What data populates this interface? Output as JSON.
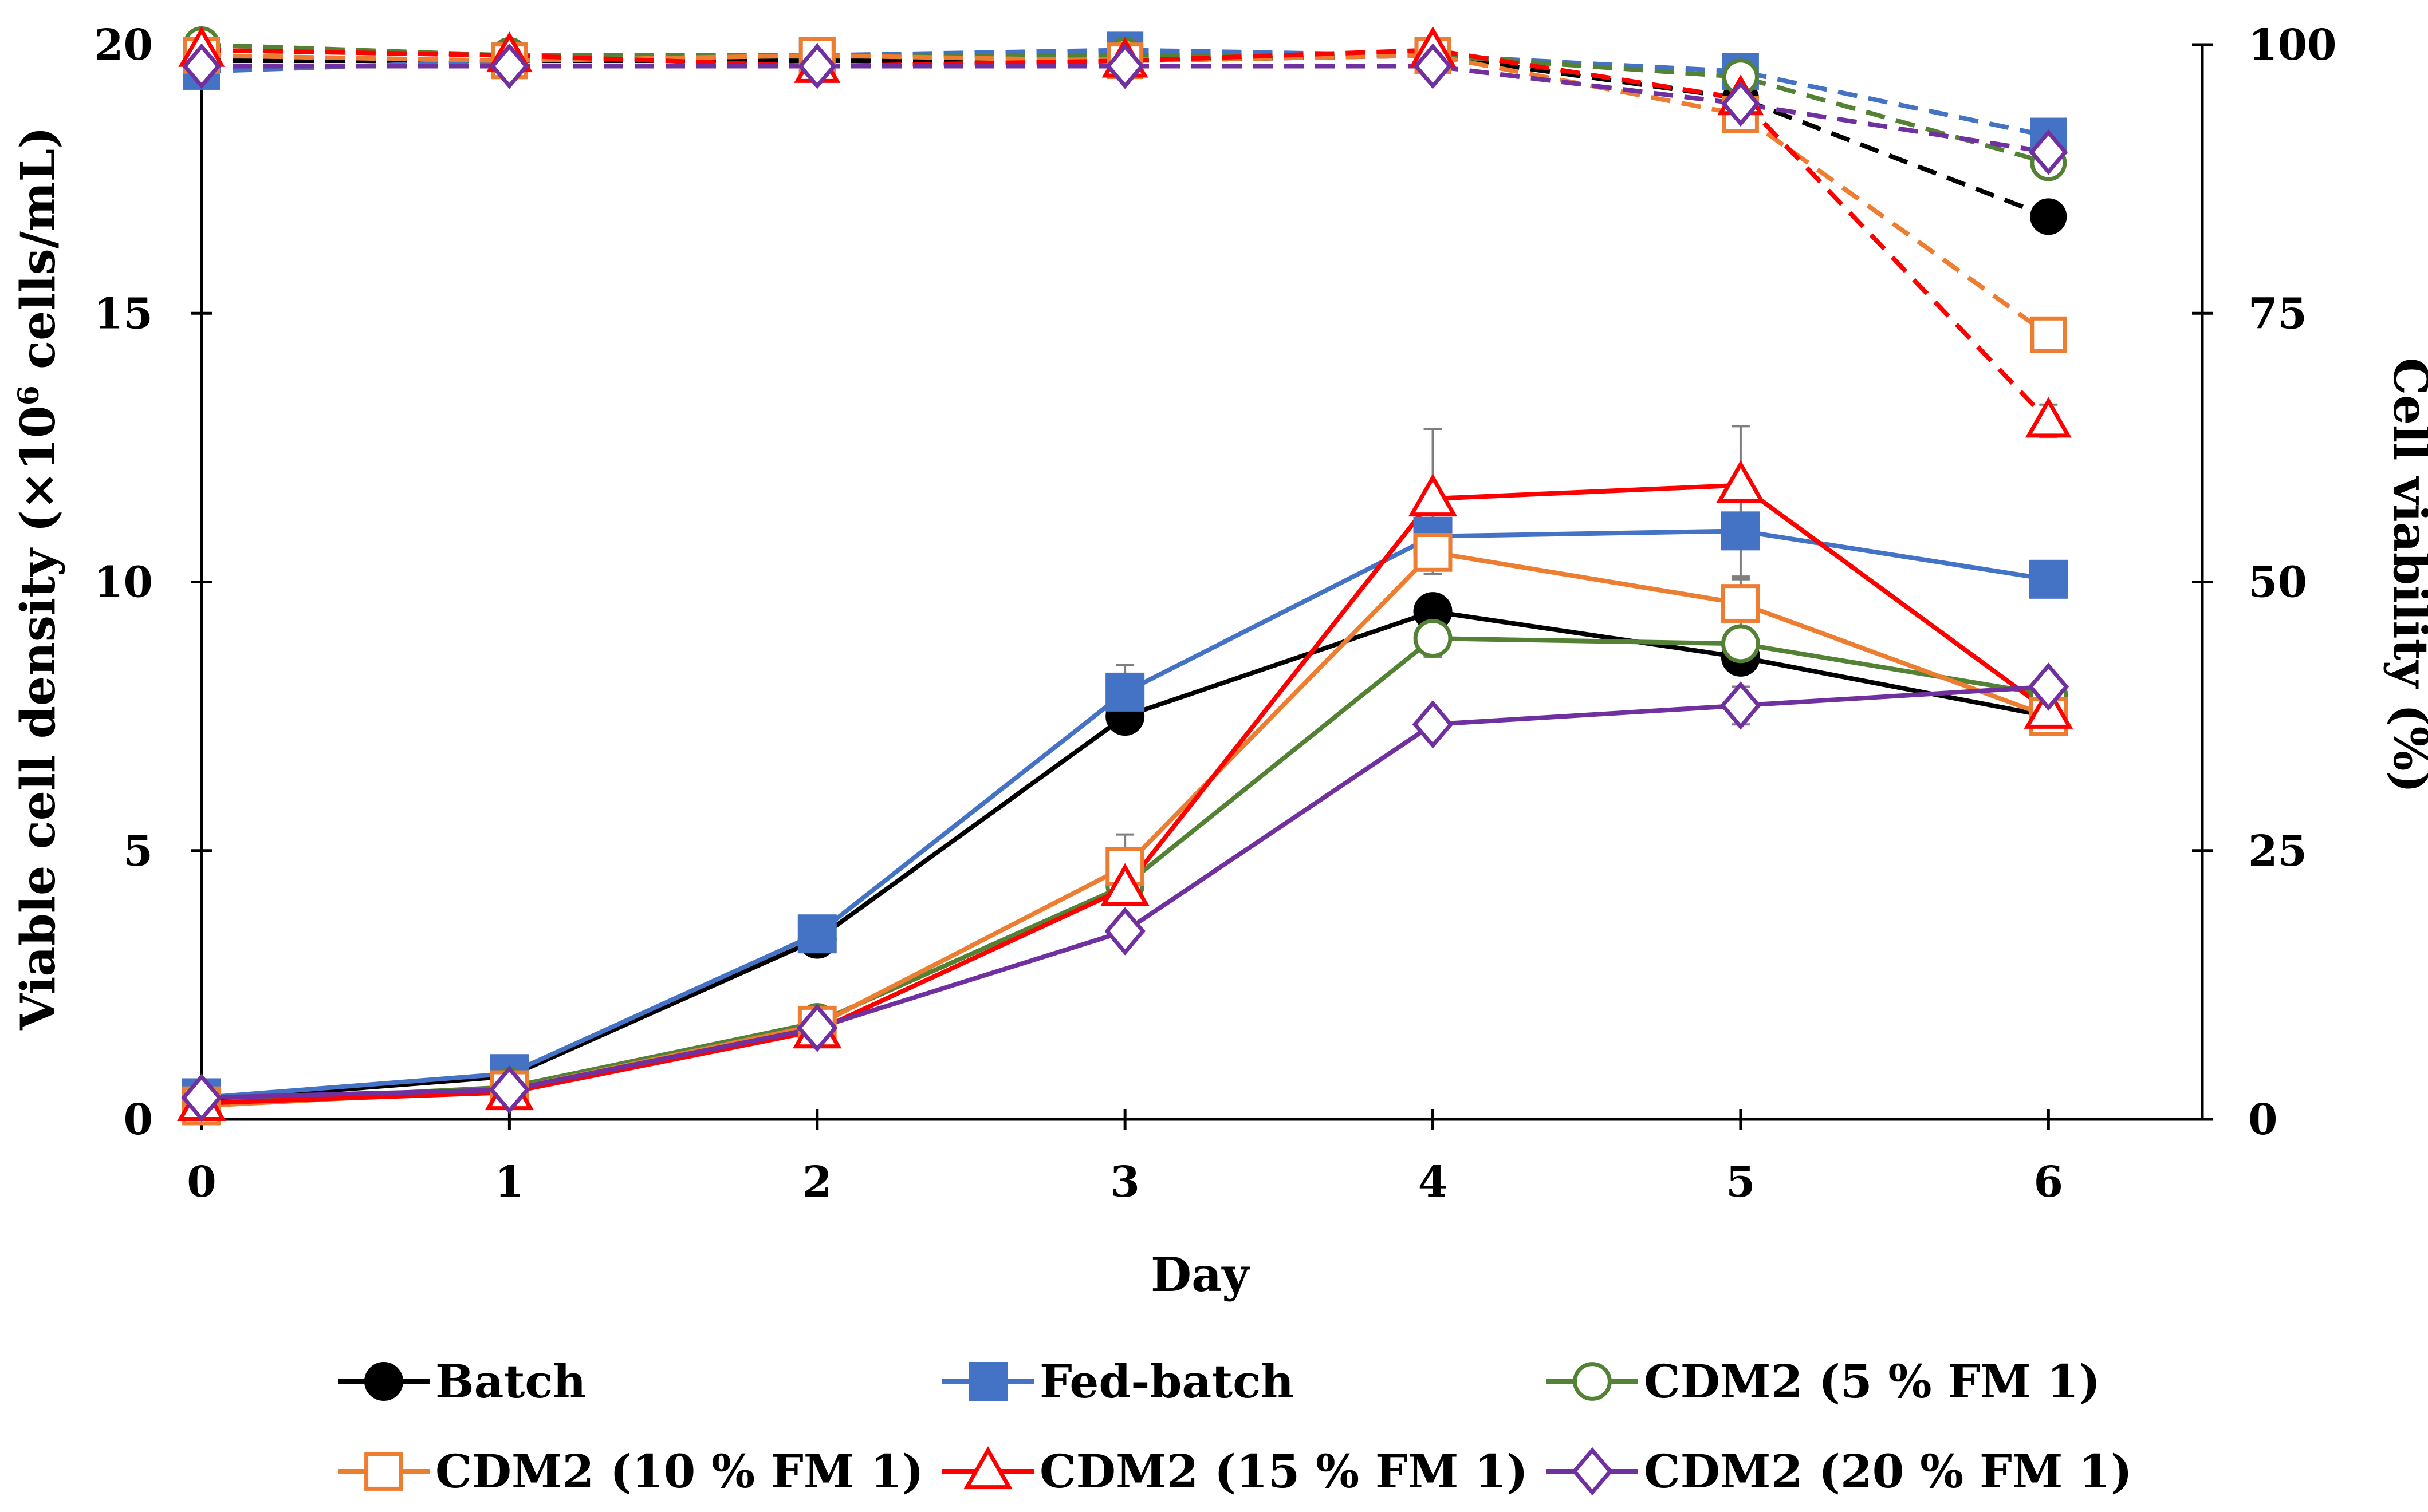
{
  "chart_data": {
    "type": "line",
    "xlabel": "Day",
    "ylabel_left_main": "Viable cell density (×10",
    "ylabel_left_sup": "6",
    "ylabel_left_tail": " cells/mL)",
    "ylabel_right": "Cell viability (%)",
    "x": [
      0,
      1,
      2,
      3,
      4,
      5,
      6
    ],
    "xlim": [
      0,
      6.5
    ],
    "y_left_lim": [
      0,
      20
    ],
    "y_right_lim": [
      0,
      100
    ],
    "x_ticks": [
      "0",
      "1",
      "2",
      "3",
      "4",
      "5",
      "6"
    ],
    "y_left_ticks": [
      "0",
      "5",
      "10",
      "15",
      "20"
    ],
    "y_right_ticks": [
      "0",
      "25",
      "50",
      "75",
      "100"
    ],
    "legend_position": "bottom",
    "series": [
      {
        "name": "Batch",
        "color": "#000000",
        "marker": "circle-filled",
        "vcd": [
          0.35,
          0.8,
          3.35,
          7.5,
          9.45,
          8.6,
          7.5
        ],
        "vcd_err": [
          0,
          0,
          0.15,
          0,
          0.1,
          0.1,
          0.2
        ],
        "viability": [
          98.5,
          98.5,
          98.5,
          98.5,
          99,
          95,
          84
        ],
        "viability_err": [
          0,
          0,
          0,
          0,
          0,
          0,
          1.2
        ]
      },
      {
        "name": "Fed-batch",
        "color": "#4472C4",
        "marker": "square-filled",
        "vcd": [
          0.4,
          0.85,
          3.45,
          7.95,
          10.85,
          10.95,
          10.05
        ],
        "vcd_err": [
          0,
          0,
          0,
          0.5,
          0.3,
          0.9,
          0
        ],
        "viability": [
          97.5,
          98.5,
          99,
          99.5,
          99,
          97.5,
          91.5
        ],
        "viability_err": [
          0,
          0,
          0,
          0,
          0,
          0.8,
          0.5
        ]
      },
      {
        "name": "CDM2 (5 % FM 1)",
        "color": "#548235",
        "marker": "circle-open",
        "vcd": [
          0.3,
          0.6,
          1.8,
          4.35,
          8.95,
          8.85,
          7.9
        ],
        "vcd_err": [
          0,
          0,
          0.25,
          0,
          0.35,
          0.3,
          0
        ],
        "viability": [
          100,
          99,
          99,
          99,
          99,
          97,
          89
        ],
        "viability_err": [
          0,
          0,
          0,
          0,
          0,
          0,
          1.3
        ]
      },
      {
        "name": "CDM2 (10 % FM 1)",
        "color": "#ED7D31",
        "marker": "square-open",
        "vcd": [
          0.25,
          0.55,
          1.75,
          4.7,
          10.55,
          9.6,
          7.5
        ],
        "vcd_err": [
          0,
          0,
          0,
          0.6,
          0.4,
          0.5,
          0.2
        ],
        "viability": [
          99,
          98.5,
          99,
          98.5,
          99,
          93.5,
          73
        ],
        "viability_err": [
          0,
          0,
          0,
          0,
          0,
          1.2,
          1
        ]
      },
      {
        "name": "CDM2 (15 % FM 1)",
        "color": "#FF0000",
        "marker": "triangle-open",
        "vcd": [
          0.3,
          0.5,
          1.65,
          4.3,
          11.55,
          11.8,
          7.6
        ],
        "vcd_err": [
          0,
          0,
          0,
          0,
          1.3,
          1.1,
          0
        ],
        "viability": [
          99.5,
          99,
          98,
          98.5,
          99.5,
          95,
          65
        ],
        "viability_err": [
          0,
          0,
          0,
          0,
          0,
          0,
          1.5
        ]
      },
      {
        "name": "CDM2 (20 % FM 1)",
        "color": "#7030A0",
        "marker": "diamond-open",
        "vcd": [
          0.4,
          0.55,
          1.7,
          3.5,
          7.35,
          7.7,
          8.05
        ],
        "vcd_err": [
          0,
          0,
          0,
          0,
          0,
          0.35,
          0
        ],
        "viability": [
          98,
          98,
          98,
          98,
          98,
          94.5,
          90
        ],
        "viability_err": [
          0,
          0,
          0,
          0,
          0,
          0,
          0
        ]
      }
    ]
  }
}
